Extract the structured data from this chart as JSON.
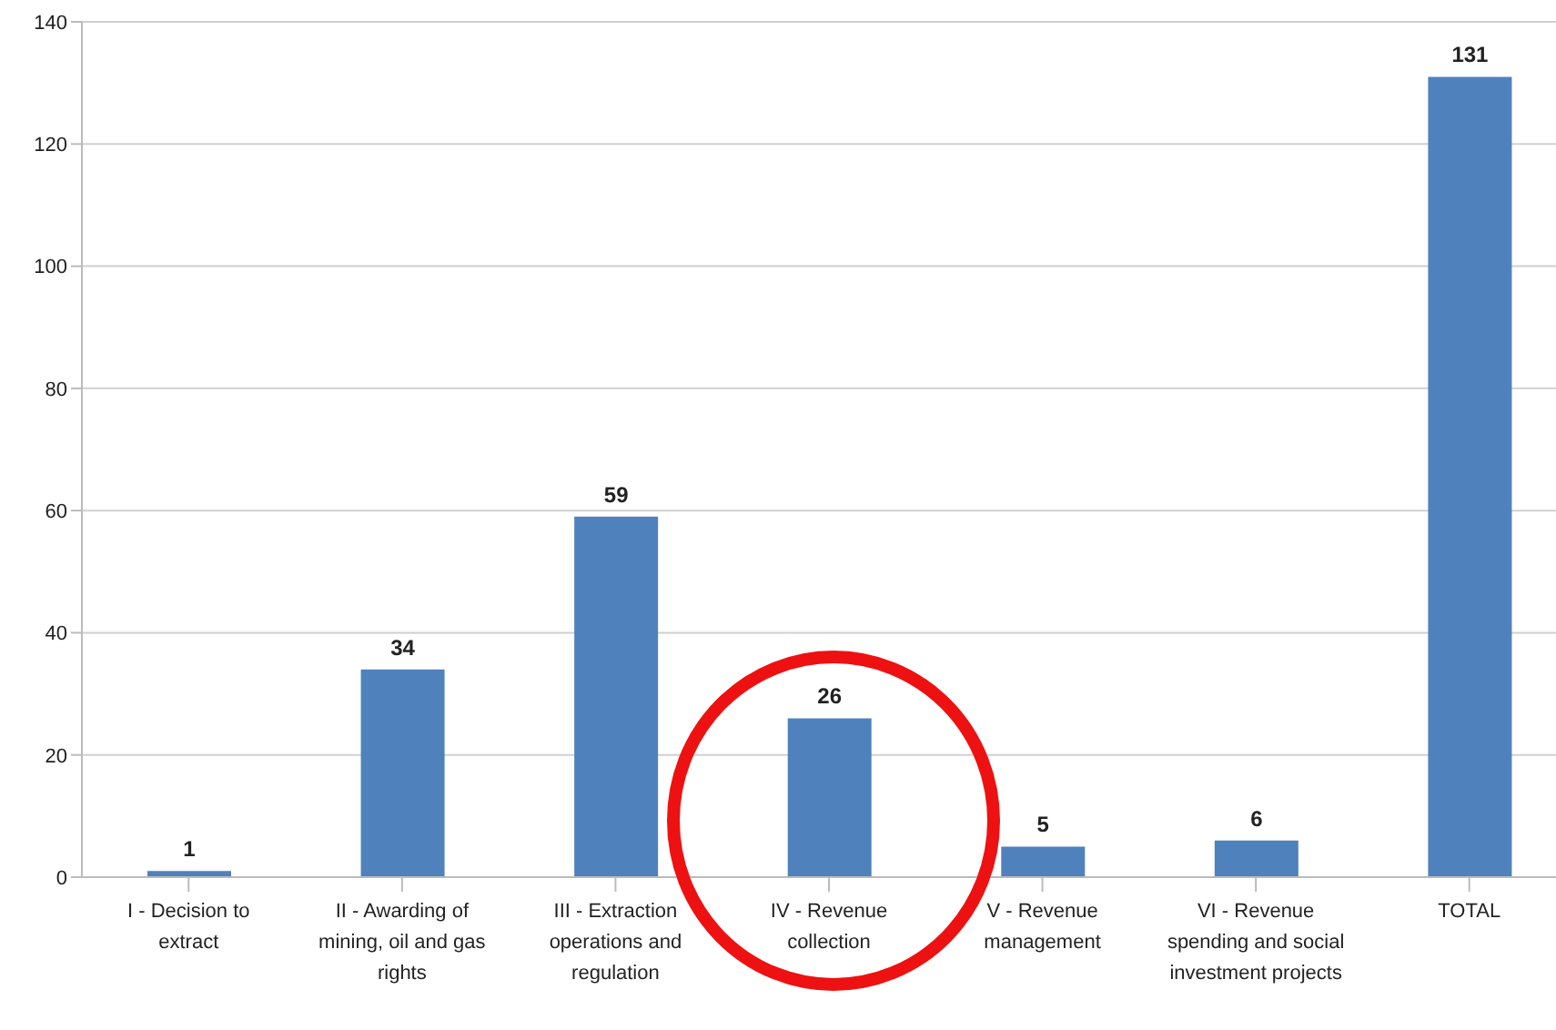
{
  "chart_data": {
    "type": "bar",
    "categories": [
      "I - Decision to extract",
      "II - Awarding of mining, oil and gas rights",
      "III - Extraction operations and regulation",
      "IV - Revenue collection",
      "V - Revenue management",
      "VI - Revenue spending and social investment projects",
      "TOTAL"
    ],
    "values": [
      1,
      34,
      59,
      26,
      5,
      6,
      131
    ],
    "color": "#4f81bd",
    "ylim": [
      0,
      140
    ],
    "yticks": [
      0,
      20,
      40,
      60,
      80,
      100,
      120,
      140
    ],
    "grid": "y",
    "data_labels": true
  }
}
